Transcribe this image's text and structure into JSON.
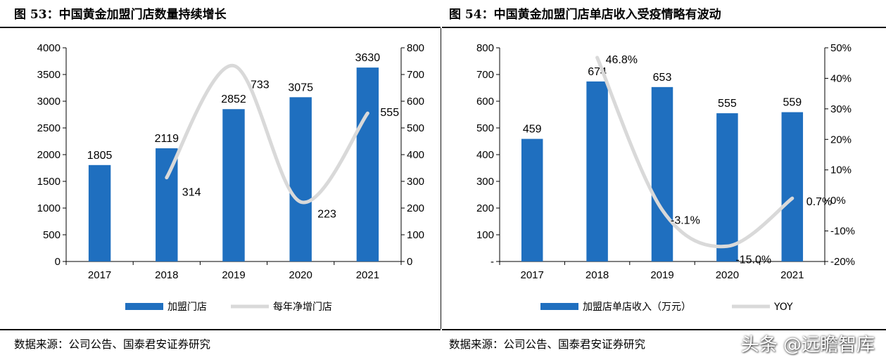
{
  "left": {
    "title": "图 53：中国黄金加盟门店数量持续增长",
    "source": "数据来源：公司公告、国泰君安证券研究",
    "legend": {
      "bar": "加盟门店",
      "line": "每年净增门店"
    }
  },
  "right": {
    "title": "图 54：中国黄金加盟门店单店收入受疫情略有波动",
    "source": "数据来源：公司公告、国泰君安证券研究",
    "legend": {
      "bar": "加盟店单店收入（万元）",
      "line": "YOY"
    }
  },
  "watermark": "头条 @远瞻智库",
  "colors": {
    "bar": "#1f6fbf",
    "line": "#d9d9d9",
    "text": "#000000"
  },
  "chart_data": [
    {
      "type": "bar",
      "categories": [
        "2017",
        "2018",
        "2019",
        "2020",
        "2021"
      ],
      "series": [
        {
          "name": "加盟门店",
          "type": "bar",
          "axis": "left",
          "values": [
            1805,
            2119,
            2852,
            3075,
            3630
          ]
        },
        {
          "name": "每年净增门店",
          "type": "line",
          "axis": "right",
          "x": [
            "2018",
            "2019",
            "2020",
            "2021"
          ],
          "values": [
            314,
            733,
            223,
            555
          ]
        }
      ],
      "ylim": [
        0,
        4000
      ],
      "y2lim": [
        0,
        800
      ],
      "y_ticks": [
        "0",
        "500",
        "1000",
        "1500",
        "2000",
        "2500",
        "3000",
        "3500",
        "4000"
      ],
      "y2_ticks": [
        "0",
        "100",
        "200",
        "300",
        "400",
        "500",
        "600",
        "700",
        "800"
      ],
      "legend_position": "bottom",
      "grid": false
    },
    {
      "type": "bar",
      "categories": [
        "2017",
        "2018",
        "2019",
        "2020",
        "2021"
      ],
      "series": [
        {
          "name": "加盟店单店收入（万元）",
          "type": "bar",
          "axis": "left",
          "values": [
            459,
            674,
            653,
            555,
            559
          ]
        },
        {
          "name": "YOY",
          "type": "line",
          "axis": "right",
          "x": [
            "2018",
            "2019",
            "2020",
            "2021"
          ],
          "values": [
            46.8,
            -3.1,
            -15.0,
            0.7
          ],
          "labels": [
            "46.8%",
            "-3.1%",
            "-15.0%",
            "0.7%"
          ]
        }
      ],
      "ylim": [
        0,
        800
      ],
      "y2lim": [
        -20,
        50
      ],
      "y_ticks": [
        "-",
        "100",
        "200",
        "300",
        "400",
        "500",
        "600",
        "700",
        "800"
      ],
      "y2_ticks": [
        "-20%",
        "-10%",
        "0%",
        "10%",
        "20%",
        "30%",
        "40%",
        "50%"
      ],
      "legend_position": "bottom",
      "grid": false
    }
  ]
}
